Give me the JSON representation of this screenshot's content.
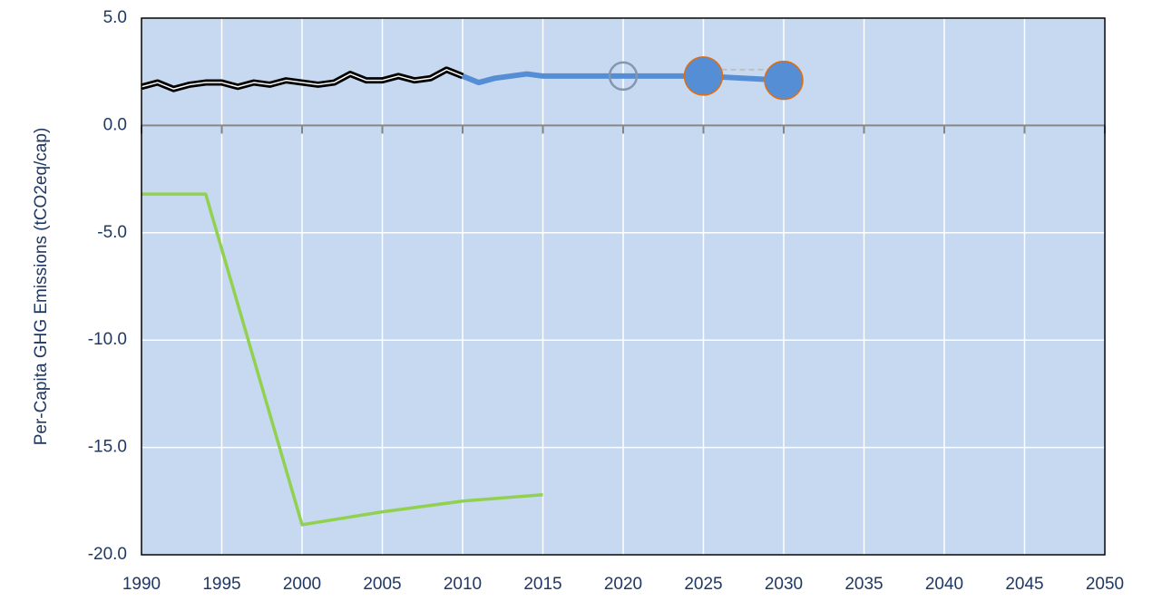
{
  "chart_data": {
    "type": "line",
    "y_label": "Per-Capita GHG Emissions (tCO2eq/cap)",
    "xlim": [
      1990,
      2050
    ],
    "xticks": [
      1990,
      1995,
      2000,
      2005,
      2010,
      2015,
      2020,
      2025,
      2030,
      2035,
      2040,
      2045,
      2050
    ],
    "ylim": [
      -20,
      5
    ],
    "yticks": [
      {
        "value": 5,
        "label": "5.0"
      },
      {
        "value": 0,
        "label": "0.0"
      },
      {
        "value": -5,
        "label": "-5.0"
      },
      {
        "value": -10,
        "label": "-10.0"
      },
      {
        "value": -15,
        "label": "-15.0"
      },
      {
        "value": -20,
        "label": "-20.0"
      }
    ],
    "grid": true,
    "background": "#c6d9f0",
    "series": [
      {
        "color": "#000000",
        "style": "double",
        "x": [
          1990,
          1991,
          1992,
          1993,
          1994,
          1995,
          1996,
          1997,
          1998,
          1999,
          2000,
          2001,
          2002,
          2003,
          2004,
          2005,
          2006,
          2007,
          2008,
          2009,
          2010
        ],
        "values": [
          1.8,
          2.0,
          1.7,
          1.9,
          2.0,
          2.0,
          1.8,
          2.0,
          1.9,
          2.1,
          2.0,
          1.9,
          2.0,
          2.4,
          2.1,
          2.1,
          2.3,
          2.1,
          2.2,
          2.6,
          2.3
        ]
      },
      {
        "color": "#558ed5",
        "style": "thick",
        "x": [
          2010,
          2011,
          2012,
          2013,
          2014,
          2015,
          2020,
          2025,
          2030
        ],
        "values": [
          2.3,
          2.0,
          2.2,
          2.3,
          2.4,
          2.3,
          2.3,
          2.3,
          2.1
        ]
      },
      {
        "color": "#bfbfbf",
        "style": "dashed",
        "x": [
          2025,
          2030
        ],
        "values": [
          2.6,
          2.6
        ]
      },
      {
        "color": "#8496b0",
        "style": "open-marker",
        "x": [
          2020
        ],
        "values": [
          2.3
        ]
      },
      {
        "color": "#558ed5",
        "edge": "#e46c0a",
        "style": "filled-marker",
        "x": [
          2025,
          2030
        ],
        "values": [
          2.3,
          2.1
        ]
      },
      {
        "color": "#92d050",
        "style": "thin",
        "x": [
          1990,
          1994,
          2000,
          2005,
          2010,
          2015
        ],
        "values": [
          -3.2,
          -3.2,
          -18.6,
          -18.0,
          -17.5,
          -17.2
        ]
      }
    ]
  }
}
